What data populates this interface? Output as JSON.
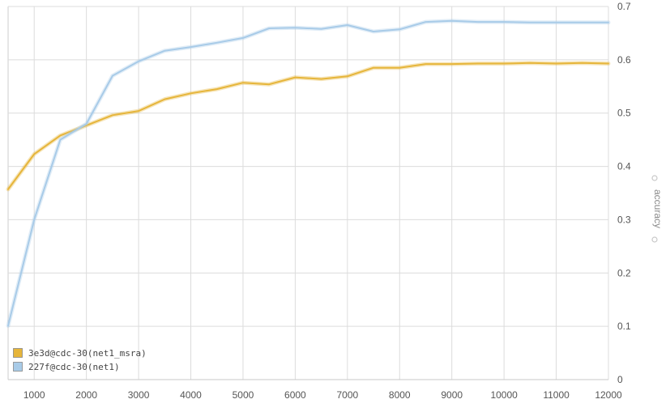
{
  "chart_data": {
    "type": "line",
    "xlabel": "",
    "ylabel": "accuracy",
    "xlim": [
      500,
      12000
    ],
    "ylim": [
      0,
      0.7
    ],
    "x_ticks": [
      1000,
      2000,
      3000,
      4000,
      5000,
      6000,
      7000,
      8000,
      9000,
      10000,
      11000,
      12000
    ],
    "y_ticks": [
      0,
      0.1,
      0.2,
      0.3,
      0.4,
      0.5,
      0.6,
      0.7
    ],
    "grid": true,
    "legend_position": "bottom-left",
    "series": [
      {
        "name": "3e3d@cdc-30(net1_msra)",
        "color": "#e6b53a",
        "x": [
          500,
          1000,
          1500,
          2000,
          2500,
          3000,
          3500,
          4000,
          4500,
          5000,
          5500,
          6000,
          6500,
          7000,
          7500,
          8000,
          8500,
          9000,
          9500,
          10000,
          10500,
          11000,
          11500,
          12000
        ],
        "values": [
          0.357,
          0.423,
          0.458,
          0.477,
          0.496,
          0.504,
          0.526,
          0.537,
          0.545,
          0.557,
          0.554,
          0.567,
          0.564,
          0.569,
          0.585,
          0.585,
          0.592,
          0.592,
          0.593,
          0.593,
          0.594,
          0.593,
          0.594,
          0.593
        ]
      },
      {
        "name": "227f@cdc-30(net1)",
        "color": "#a8cbe8",
        "x": [
          500,
          1000,
          1500,
          2000,
          2500,
          3000,
          3500,
          4000,
          4500,
          5000,
          5500,
          6000,
          6500,
          7000,
          7500,
          8000,
          8500,
          9000,
          9500,
          10000,
          10500,
          11000,
          11500,
          12000
        ],
        "values": [
          0.101,
          0.3,
          0.45,
          0.48,
          0.57,
          0.597,
          0.617,
          0.624,
          0.632,
          0.641,
          0.659,
          0.66,
          0.658,
          0.665,
          0.653,
          0.657,
          0.671,
          0.673,
          0.671,
          0.671,
          0.67,
          0.67,
          0.67,
          0.67
        ]
      }
    ]
  },
  "legend_icon": "square-swatch"
}
